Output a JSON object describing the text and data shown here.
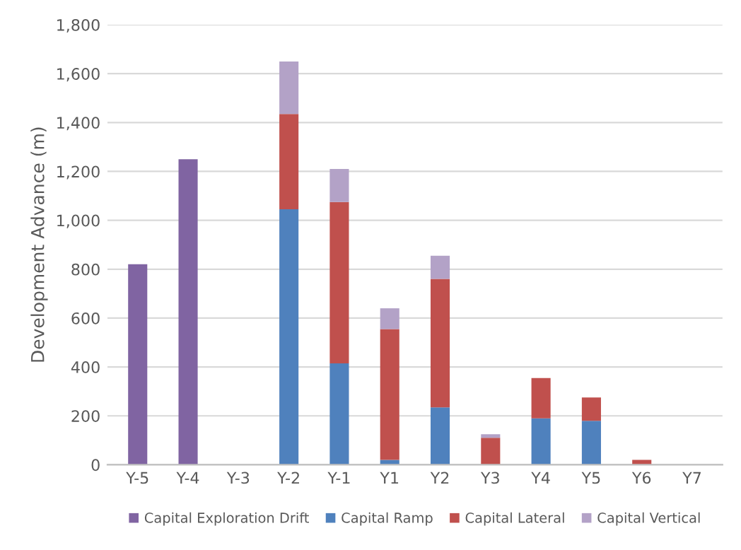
{
  "chart_data": {
    "type": "bar",
    "stacked": true,
    "ylabel": "Development Advance (m)",
    "categories": [
      "Y-5",
      "Y-4",
      "Y-3",
      "Y-2",
      "Y-1",
      "Y1",
      "Y2",
      "Y3",
      "Y4",
      "Y5",
      "Y6",
      "Y7"
    ],
    "series": [
      {
        "name": "Capital Exploration Drift",
        "color": "#8064a2",
        "values": [
          820,
          1250,
          0,
          0,
          0,
          0,
          0,
          0,
          0,
          0,
          0,
          0
        ]
      },
      {
        "name": "Capital Ramp",
        "color": "#4f81bd",
        "values": [
          0,
          0,
          0,
          1045,
          415,
          20,
          235,
          0,
          190,
          180,
          0,
          0
        ]
      },
      {
        "name": "Capital Lateral",
        "color": "#c0504d",
        "values": [
          0,
          0,
          0,
          390,
          660,
          535,
          525,
          110,
          165,
          95,
          20,
          0
        ]
      },
      {
        "name": "Capital Vertical",
        "color": "#b3a2c7",
        "values": [
          0,
          0,
          0,
          215,
          135,
          85,
          95,
          15,
          0,
          0,
          0,
          0
        ]
      }
    ],
    "ylim": [
      0,
      1800
    ],
    "yticks": [
      0,
      {
        "value": 200,
        "label": "200"
      },
      {
        "value": 400,
        "label": "400"
      },
      {
        "value": 600,
        "label": "600"
      },
      {
        "value": 800,
        "label": "800"
      },
      {
        "value": 1000,
        "label": "1,000"
      },
      {
        "value": 1200,
        "label": "1,200"
      },
      {
        "value": 1400,
        "label": "1,400"
      },
      {
        "value": 1600,
        "label": "1,600"
      },
      {
        "value": 1800,
        "label": "1,800"
      }
    ],
    "grid": "y",
    "legend": "bottom"
  }
}
